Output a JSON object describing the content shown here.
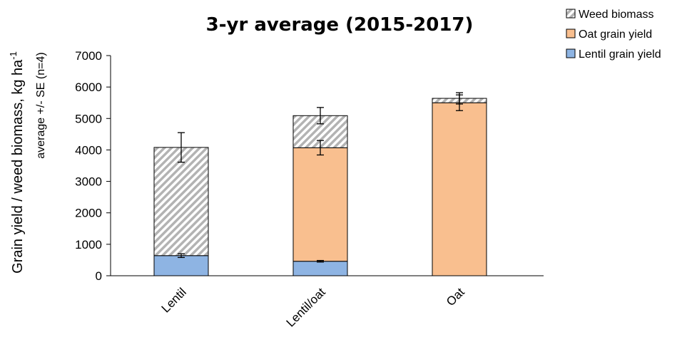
{
  "chart_data": {
    "type": "bar",
    "stacked": true,
    "title": "3-yr average (2015-2017)",
    "ylabel": "Grain yield / weed biomass, kg ha",
    "ylabel_superscript": "-1",
    "ylabel_secondary": "average +/- SE (n=4)",
    "xlabel": "",
    "categories": [
      "Lentil",
      "Lentil/oat",
      "Oat"
    ],
    "ylim": [
      0,
      7000
    ],
    "yticks": [
      0,
      1000,
      2000,
      3000,
      4000,
      5000,
      6000,
      7000
    ],
    "grid": false,
    "legend_position": "top-right",
    "series": [
      {
        "name": "Lentil grain yield",
        "values": [
          640,
          460,
          0
        ],
        "error": [
          60,
          25,
          null
        ],
        "color": "#8EB4E3",
        "pattern": "solid"
      },
      {
        "name": "Oat grain yield",
        "values": [
          0,
          3610,
          5500
        ],
        "error": [
          null,
          230,
          250
        ],
        "color": "#F9BF8F",
        "pattern": "solid"
      },
      {
        "name": "Weed biomass",
        "values": [
          3440,
          1020,
          140
        ],
        "error": [
          470,
          260,
          180
        ],
        "color": "#BFBFBF",
        "pattern": "diagonal-hatch"
      }
    ],
    "legend_order": [
      "Weed biomass",
      "Oat grain yield",
      "Lentil grain yield"
    ]
  }
}
